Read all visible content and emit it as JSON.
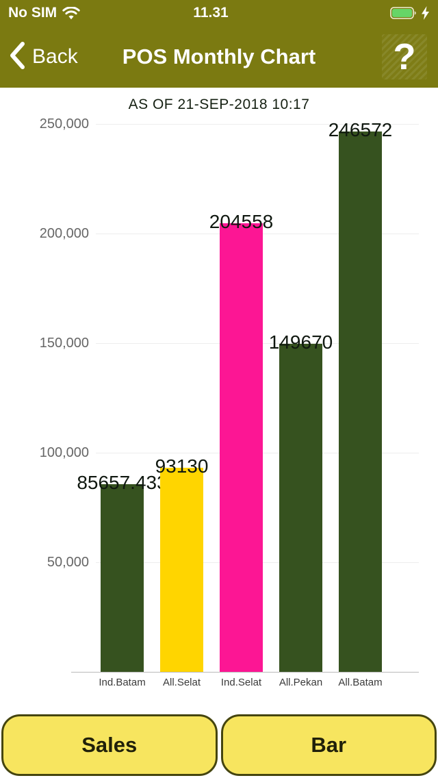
{
  "status_bar": {
    "carrier": "No SIM",
    "time": "11.31"
  },
  "nav": {
    "back_label": "Back",
    "title": "POS Monthly Chart",
    "help_label": "?"
  },
  "chart_data": {
    "type": "bar",
    "title": "AS OF 21-SEP-2018 10:17",
    "categories": [
      "Ind.Batam",
      "All.Selat",
      "Ind.Selat",
      "All.Pekan",
      "All.Batam"
    ],
    "values": [
      85657.433,
      93130,
      204558,
      149670,
      246572
    ],
    "value_labels": [
      "85657.433",
      "93130",
      "204558",
      "149670",
      "246572"
    ],
    "bar_colors": [
      "#36521f",
      "#ffd500",
      "#fc1694",
      "#36521f",
      "#36521f"
    ],
    "y_ticks": [
      {
        "value": 50000,
        "label": "50,000"
      },
      {
        "value": 100000,
        "label": "100,000"
      },
      {
        "value": 150000,
        "label": "150,000"
      },
      {
        "value": 200000,
        "label": "200,000"
      },
      {
        "value": 250000,
        "label": "250,000"
      }
    ],
    "ylim": [
      0,
      254000
    ],
    "xlabel": "",
    "ylabel": "",
    "grid": true,
    "legend": false
  },
  "buttons": {
    "left": "Sales",
    "right": "Bar"
  },
  "colors": {
    "header_background": "#7b7a11",
    "header_text": "#ffffff",
    "battery_fill": "#67d567",
    "dark_green_bar": "#36521f",
    "yellow_bar": "#ffd500",
    "pink_bar": "#fc1694",
    "footer_button_fill": "#f7e55f",
    "footer_button_border": "#45450f",
    "gridline": "#ededed",
    "axis_line": "#b9b9b9",
    "y_tick_text": "#666666",
    "value_label_text": "#101810"
  }
}
